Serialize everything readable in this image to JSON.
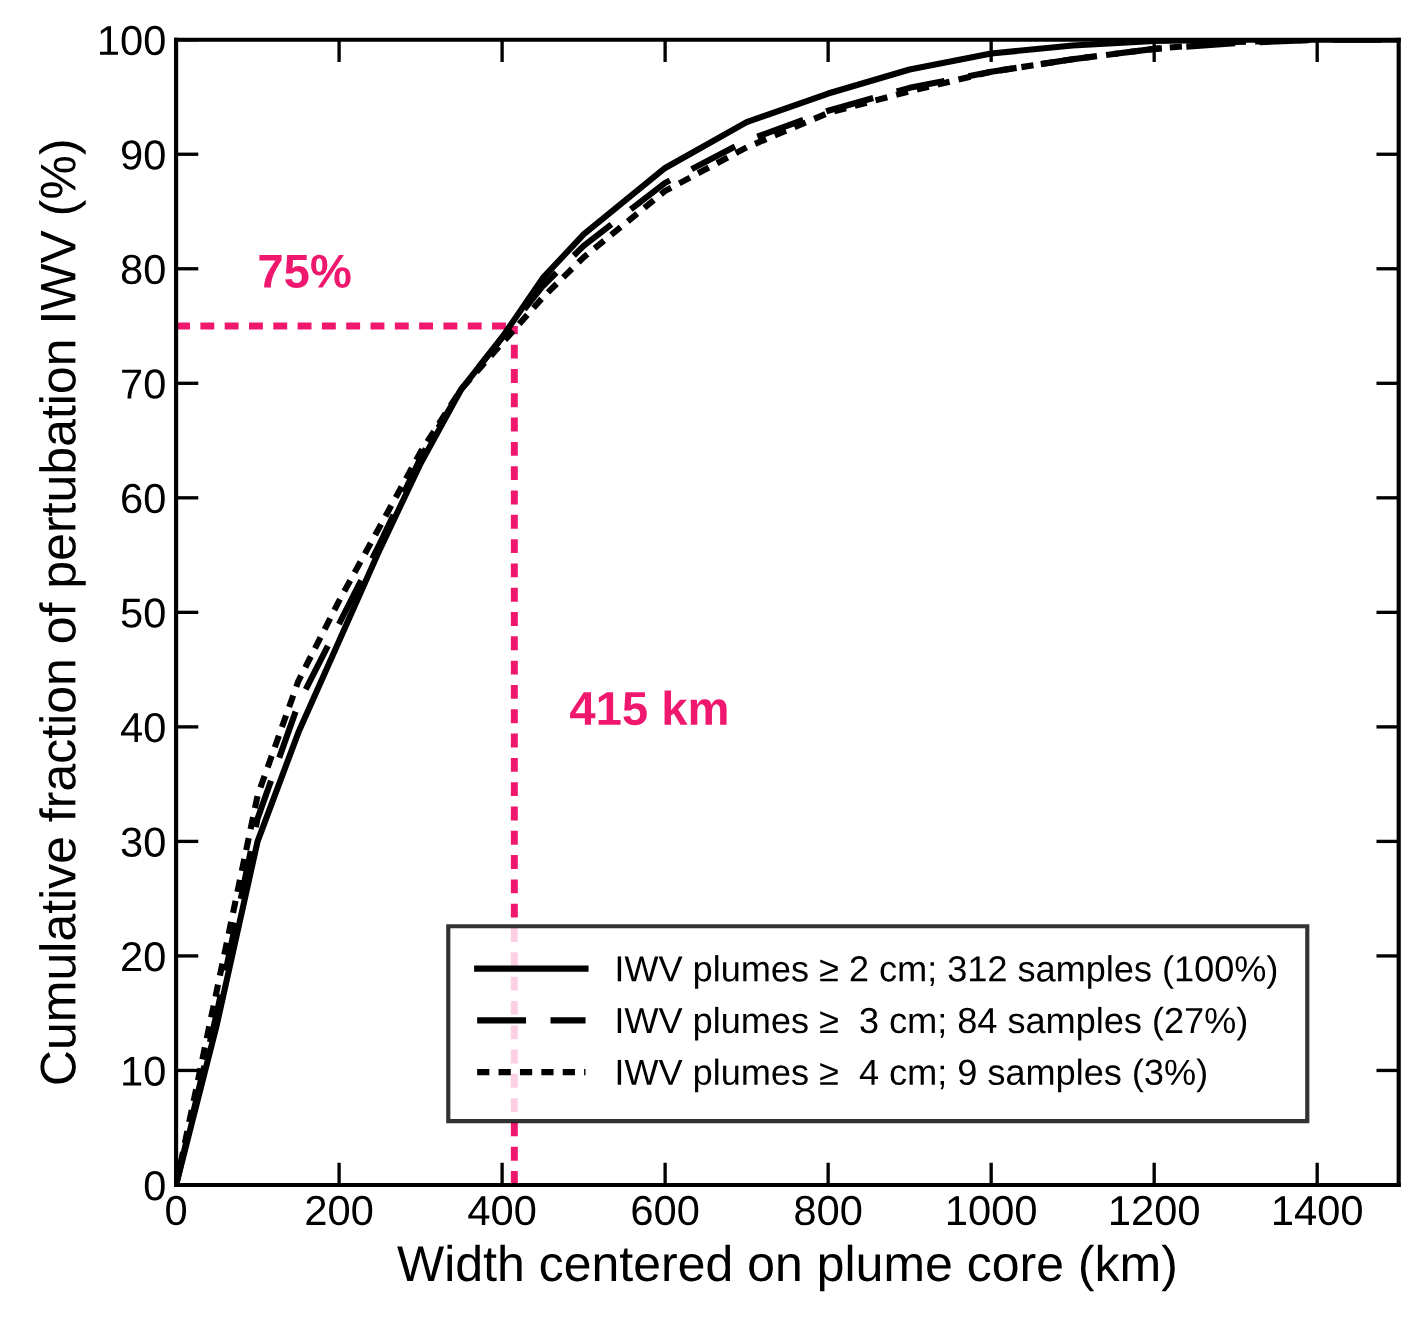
{
  "chart_data": {
    "type": "line",
    "xlabel": "Width centered on plume core (km)",
    "ylabel": "Cumulative fraction of pertubation IWV (%)",
    "x": [
      0,
      50,
      100,
      150,
      200,
      250,
      300,
      350,
      400,
      450,
      500,
      600,
      700,
      800,
      900,
      1000,
      1100,
      1200,
      1300,
      1400,
      1500
    ],
    "series": [
      {
        "name": "IWV plumes ≥ 2 cm; 312 samples (100%)",
        "color": "#000000",
        "line_style": "solid",
        "values": [
          0,
          14,
          30,
          39.5,
          47.5,
          55.5,
          63,
          69.5,
          74,
          79.2,
          83,
          88.8,
          92.8,
          95.3,
          97.4,
          98.8,
          99.5,
          99.9,
          100,
          100,
          100
        ]
      },
      {
        "name": "IWV plumes ≥  3 cm; 84 samples (27%)",
        "color": "#000000",
        "line_style": "dashed",
        "values": [
          0,
          15,
          32,
          42,
          49,
          56,
          63.5,
          69.5,
          74,
          78.5,
          82,
          87.5,
          91.2,
          93.8,
          95.8,
          97.2,
          98.3,
          99.2,
          99.7,
          100,
          100
        ]
      },
      {
        "name": "IWV plumes ≥  4 cm; 9 samples (3%)",
        "color": "#000000",
        "line_style": "dotted",
        "x": [
          0,
          50,
          100,
          150,
          200,
          250,
          300,
          350,
          400,
          450,
          500,
          600,
          700,
          800,
          900,
          1000,
          1100,
          1200,
          1300,
          1400
        ],
        "values": [
          0,
          17,
          34,
          44,
          51,
          57.5,
          64,
          69.5,
          73.5,
          77.5,
          81,
          86.8,
          90.6,
          93.6,
          95.5,
          97.2,
          98.3,
          99.2,
          99.8,
          100
        ]
      }
    ],
    "xlim": [
      0,
      1500
    ],
    "ylim": [
      0,
      100
    ],
    "xticks": [
      0,
      200,
      400,
      600,
      800,
      1000,
      1200,
      1400
    ],
    "yticks": [
      0,
      10,
      20,
      30,
      40,
      50,
      60,
      70,
      80,
      90,
      100
    ],
    "ref_lines": [
      {
        "axis": "y",
        "value": 75,
        "label": "75%",
        "color": "#f0186e",
        "line_style": "dotted"
      },
      {
        "axis": "x",
        "value": 415,
        "label": "415 km",
        "color": "#f0186e",
        "line_style": "dotted"
      }
    ],
    "grid": false,
    "legend": "bottom right",
    "marker": "none"
  }
}
